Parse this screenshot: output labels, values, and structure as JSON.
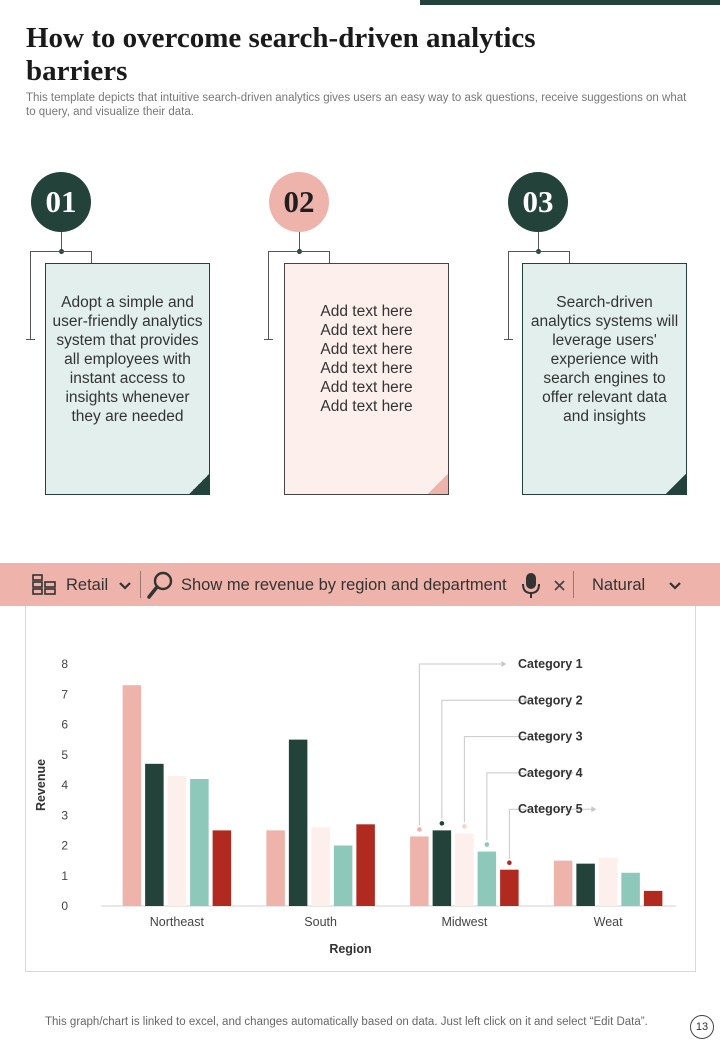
{
  "page": {
    "title": "How to overcome search-driven analytics barriers",
    "subtitle": "This template depicts that intuitive search-driven analytics gives users an easy way to ask questions, receive suggestions on what to query, and visualize their data.",
    "footer": "This graph/chart is linked to excel, and changes automatically based on data. Just left click on it and select “Edit Data”.",
    "page_number": "13"
  },
  "steps": [
    {
      "number": "01",
      "text": "Adopt a simple and user-friendly analytics system that provides all employees with instant access to insights whenever they are needed"
    },
    {
      "number": "02",
      "text": "Add text here\nAdd text here\nAdd text here\nAdd text here\nAdd text here\nAdd text here"
    },
    {
      "number": "03",
      "text": "Search-driven analytics systems will leverage users' experience with search engines to offer relevant data and insights"
    }
  ],
  "search_bar": {
    "source_label": "Retail",
    "query": "Show me revenue by region and department",
    "mode_label": "Natural",
    "icons": [
      "database-icon",
      "chevron-down-icon",
      "search-icon",
      "microphone-icon",
      "close-icon",
      "chevron-down-icon"
    ]
  },
  "colors": {
    "dark_green": "#234239",
    "pink": "#eeb4ab",
    "mint": "#e2efec",
    "blush": "#fcefec",
    "teal": "#8ec8bb",
    "red": "#b02a20"
  },
  "chart_data": {
    "type": "bar",
    "xlabel": "Region",
    "ylabel": "Revenue",
    "ylim": [
      0,
      8
    ],
    "yticks": [
      0,
      1,
      2,
      3,
      4,
      5,
      6,
      7,
      8
    ],
    "categories": [
      "Northeast",
      "South",
      "Midwest",
      "Weat"
    ],
    "series": [
      {
        "name": "Category 1",
        "color": "#eeb4ab",
        "values": [
          7.3,
          2.5,
          2.3,
          1.5
        ]
      },
      {
        "name": "Category 2",
        "color": "#234239",
        "values": [
          4.7,
          5.5,
          2.5,
          1.4
        ]
      },
      {
        "name": "Category 3",
        "color": "#fcefec",
        "values": [
          4.3,
          2.6,
          2.4,
          1.6
        ]
      },
      {
        "name": "Category 4",
        "color": "#8ec8bb",
        "values": [
          4.2,
          2.0,
          1.8,
          1.1
        ]
      },
      {
        "name": "Category 5",
        "color": "#b02a20",
        "values": [
          2.5,
          2.7,
          1.2,
          0.5
        ]
      }
    ],
    "grid": false,
    "legend_placement": "right (callouts pointing to Midwest bars)"
  }
}
